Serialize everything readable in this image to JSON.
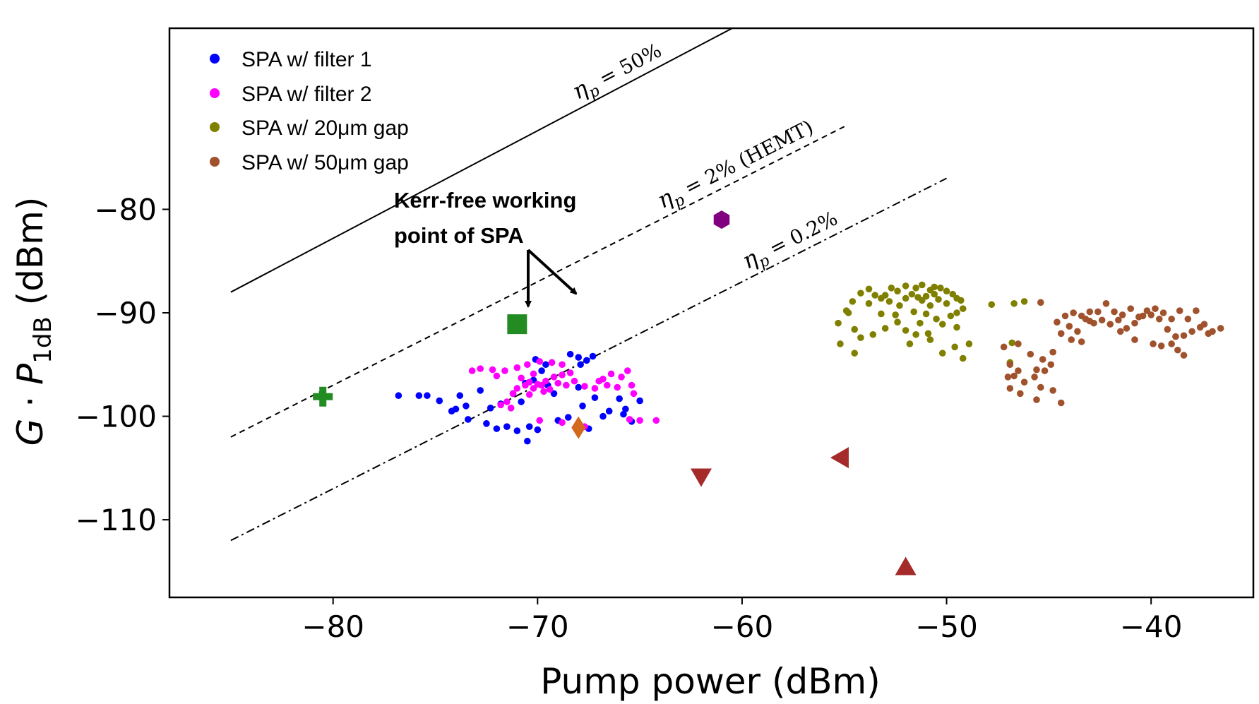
{
  "chart_data": {
    "type": "scatter",
    "xlabel": "Pump power (dBm)",
    "ylabel": "G · P_1dB (dBm)",
    "ylabel_parts": {
      "g": "G",
      "dot": " · ",
      "p": "P",
      "sub": "1dB",
      "unit": " (dBm)"
    },
    "xlim": [
      -88,
      -35
    ],
    "ylim": [
      -117.5,
      -62.5
    ],
    "xticks": [
      -80,
      -70,
      -60,
      -50,
      -40
    ],
    "xtick_labels": [
      "−80",
      "−70",
      "−60",
      "−50",
      "−40"
    ],
    "yticks": [
      -80,
      -90,
      -100,
      -110
    ],
    "ytick_labels": [
      "−80",
      "−90",
      "−100",
      "−110"
    ],
    "grid": false,
    "legend_position": "top-left",
    "series": [
      {
        "name": "SPA w/ filter 1",
        "color": "#0000ff",
        "points": [
          [
            -76.8,
            -98
          ],
          [
            -75.8,
            -98
          ],
          [
            -75.4,
            -98
          ],
          [
            -74.8,
            -98.5
          ],
          [
            -74.2,
            -99.5
          ],
          [
            -74.0,
            -99.3
          ],
          [
            -73.8,
            -98.0
          ],
          [
            -73.5,
            -99
          ],
          [
            -73.4,
            -100.3
          ],
          [
            -72.8,
            -97.5
          ],
          [
            -72.3,
            -99.2
          ],
          [
            -71.2,
            -97.8
          ],
          [
            -70.8,
            -98.6
          ],
          [
            -71.8,
            -98.8
          ],
          [
            -70.6,
            -96.8
          ],
          [
            -70.2,
            -96.5
          ],
          [
            -69.8,
            -95.6
          ],
          [
            -70.1,
            -94.5
          ],
          [
            -69.6,
            -95.0
          ],
          [
            -68.4,
            -94.0
          ],
          [
            -68.0,
            -94.3
          ],
          [
            -67.6,
            -94.6
          ],
          [
            -67.3,
            -94.2
          ],
          [
            -67.9,
            -95.0
          ],
          [
            -69.2,
            -97.8
          ],
          [
            -68.0,
            -97.2
          ],
          [
            -67.8,
            -99.0
          ],
          [
            -67.2,
            -98.2
          ],
          [
            -66.5,
            -99.5
          ],
          [
            -66.0,
            -98.3
          ],
          [
            -65.7,
            -99.3
          ],
          [
            -65.0,
            -98.5
          ],
          [
            -65.4,
            -100.5
          ],
          [
            -65.8,
            -99.8
          ],
          [
            -71.0,
            -101.4
          ],
          [
            -70.4,
            -101.0
          ],
          [
            -70.5,
            -102.4
          ],
          [
            -70.0,
            -101.3
          ],
          [
            -71.5,
            -101.0
          ],
          [
            -72.0,
            -101.2
          ],
          [
            -69.0,
            -100.4
          ],
          [
            -68.5,
            -100.1
          ],
          [
            -67.5,
            -101.2
          ],
          [
            -66.8,
            -100.0
          ],
          [
            -69.5,
            -97.0
          ],
          [
            -72.5,
            -100.7
          ]
        ]
      },
      {
        "name": "SPA w/ filter 2",
        "color": "#ff00ff",
        "points": [
          [
            -73.2,
            -95.6
          ],
          [
            -72.8,
            -95.4
          ],
          [
            -72.2,
            -95.5
          ],
          [
            -71.6,
            -95.6
          ],
          [
            -71.0,
            -95.3
          ],
          [
            -70.5,
            -95.0
          ],
          [
            -69.9,
            -94.7
          ],
          [
            -69.3,
            -94.8
          ],
          [
            -68.8,
            -95.0
          ],
          [
            -70.8,
            -96.3
          ],
          [
            -70.4,
            -96.7
          ],
          [
            -70.0,
            -96.9
          ],
          [
            -69.6,
            -96.6
          ],
          [
            -69.2,
            -96.2
          ],
          [
            -68.8,
            -96.0
          ],
          [
            -68.4,
            -95.8
          ],
          [
            -70.6,
            -97.0
          ],
          [
            -70.2,
            -97.3
          ],
          [
            -69.8,
            -97.0
          ],
          [
            -69.4,
            -97.4
          ],
          [
            -69.0,
            -96.8
          ],
          [
            -68.6,
            -97.0
          ],
          [
            -71.2,
            -97.8
          ],
          [
            -71.0,
            -97.3
          ],
          [
            -70.4,
            -97.9
          ],
          [
            -69.7,
            -97.6
          ],
          [
            -68.2,
            -96.6
          ],
          [
            -67.7,
            -97.1
          ],
          [
            -67.2,
            -97.3
          ],
          [
            -66.8,
            -96.4
          ],
          [
            -66.4,
            -95.9
          ],
          [
            -65.9,
            -96.2
          ],
          [
            -65.6,
            -95.6
          ],
          [
            -65.4,
            -97.0
          ],
          [
            -66.1,
            -97.2
          ],
          [
            -66.6,
            -97.0
          ],
          [
            -67.0,
            -96.6
          ],
          [
            -65.3,
            -97.8
          ],
          [
            -71.5,
            -98.6
          ],
          [
            -71.3,
            -99.2
          ],
          [
            -69.9,
            -100.4
          ],
          [
            -68.8,
            -100.6
          ],
          [
            -67.7,
            -101.0
          ],
          [
            -65.5,
            -100.3
          ],
          [
            -65.0,
            -100.4
          ],
          [
            -64.2,
            -100.4
          ],
          [
            -70.2,
            -95.9
          ],
          [
            -72.0,
            -96.1
          ],
          [
            -71.8,
            -98.9
          ]
        ]
      },
      {
        "name": "SPA w/ 20μm gap",
        "color": "#808000",
        "points": [
          [
            -55.3,
            -91.0
          ],
          [
            -54.9,
            -89.8
          ],
          [
            -54.6,
            -88.9
          ],
          [
            -54.5,
            -91.6
          ],
          [
            -54.2,
            -88.1
          ],
          [
            -53.8,
            -87.7
          ],
          [
            -53.5,
            -88.3
          ],
          [
            -53.2,
            -88.6
          ],
          [
            -53.0,
            -88.3
          ],
          [
            -52.7,
            -87.6
          ],
          [
            -52.4,
            -87.9
          ],
          [
            -52.0,
            -87.4
          ],
          [
            -51.7,
            -88.2
          ],
          [
            -51.5,
            -87.6
          ],
          [
            -51.2,
            -87.3
          ],
          [
            -51.0,
            -88.4
          ],
          [
            -50.8,
            -87.8
          ],
          [
            -50.6,
            -87.5
          ],
          [
            -50.3,
            -87.6
          ],
          [
            -50.0,
            -87.9
          ],
          [
            -49.7,
            -88.2
          ],
          [
            -49.5,
            -88.6
          ],
          [
            -49.3,
            -88.8
          ],
          [
            -49.2,
            -89.6
          ],
          [
            -49.5,
            -90.0
          ],
          [
            -50.0,
            -89.1
          ],
          [
            -50.4,
            -88.7
          ],
          [
            -50.8,
            -89.3
          ],
          [
            -51.2,
            -88.8
          ],
          [
            -51.6,
            -89.9
          ],
          [
            -52.0,
            -88.6
          ],
          [
            -52.3,
            -89.3
          ],
          [
            -52.8,
            -88.9
          ],
          [
            -53.2,
            -90.1
          ],
          [
            -53.8,
            -89.1
          ],
          [
            -51.0,
            -90.1
          ],
          [
            -51.3,
            -91.0
          ],
          [
            -50.2,
            -91.1
          ],
          [
            -50.5,
            -90.6
          ],
          [
            -49.8,
            -90.3
          ],
          [
            -49.5,
            -91.4
          ],
          [
            -51.5,
            -92.1
          ],
          [
            -52.0,
            -91.7
          ],
          [
            -52.4,
            -90.9
          ],
          [
            -53.0,
            -91.5
          ],
          [
            -53.6,
            -92.1
          ],
          [
            -55.2,
            -93.0
          ],
          [
            -54.5,
            -93.9
          ],
          [
            -54.2,
            -92.4
          ],
          [
            -51.8,
            -93.0
          ],
          [
            -50.8,
            -92.6
          ],
          [
            -50.2,
            -93.9
          ],
          [
            -49.2,
            -94.4
          ],
          [
            -48.9,
            -93.0
          ],
          [
            -49.6,
            -93.3
          ],
          [
            -47.8,
            -89.2
          ],
          [
            -46.7,
            -89.1
          ],
          [
            -46.2,
            -88.9
          ],
          [
            -46.9,
            -94.8
          ],
          [
            -46.8,
            -92.9
          ],
          [
            -54.8,
            -90.0
          ],
          [
            -52.5,
            -90.2
          ],
          [
            -50.6,
            -88.2
          ],
          [
            -50.9,
            -92.0
          ],
          [
            -51.4,
            -88.5
          ]
        ]
      },
      {
        "name": "SPA w/ 50μm gap",
        "color": "#a0522d",
        "points": [
          [
            -45.4,
            -89.0
          ],
          [
            -44.2,
            -90.3
          ],
          [
            -43.8,
            -90.0
          ],
          [
            -43.4,
            -90.3
          ],
          [
            -43.0,
            -89.9
          ],
          [
            -42.6,
            -89.9
          ],
          [
            -42.2,
            -89.1
          ],
          [
            -41.8,
            -89.9
          ],
          [
            -41.4,
            -90.2
          ],
          [
            -41.0,
            -89.6
          ],
          [
            -40.6,
            -90.4
          ],
          [
            -40.2,
            -89.8
          ],
          [
            -39.8,
            -89.6
          ],
          [
            -39.4,
            -90.0
          ],
          [
            -39.0,
            -90.6
          ],
          [
            -38.6,
            -89.8
          ],
          [
            -38.2,
            -90.6
          ],
          [
            -37.8,
            -89.8
          ],
          [
            -37.4,
            -91.1
          ],
          [
            -37.0,
            -91.8
          ],
          [
            -36.6,
            -91.5
          ],
          [
            -37.2,
            -92.0
          ],
          [
            -37.6,
            -91.4
          ],
          [
            -44.6,
            -90.9
          ],
          [
            -44.0,
            -91.3
          ],
          [
            -43.6,
            -91.8
          ],
          [
            -43.2,
            -90.6
          ],
          [
            -42.8,
            -91.0
          ],
          [
            -42.4,
            -90.7
          ],
          [
            -42.0,
            -91.1
          ],
          [
            -41.6,
            -90.7
          ],
          [
            -41.2,
            -91.5
          ],
          [
            -40.8,
            -91.0
          ],
          [
            -40.4,
            -90.3
          ],
          [
            -40.0,
            -90.2
          ],
          [
            -39.6,
            -90.6
          ],
          [
            -39.2,
            -91.6
          ],
          [
            -38.8,
            -92.3
          ],
          [
            -38.4,
            -92.2
          ],
          [
            -38.0,
            -91.8
          ],
          [
            -44.4,
            -92.0
          ],
          [
            -43.9,
            -92.6
          ],
          [
            -43.4,
            -92.8
          ],
          [
            -40.8,
            -92.6
          ],
          [
            -39.9,
            -93.0
          ],
          [
            -39.5,
            -93.2
          ],
          [
            -39.0,
            -93.0
          ],
          [
            -38.7,
            -93.6
          ],
          [
            -38.4,
            -94.1
          ],
          [
            -41.5,
            -91.8
          ],
          [
            -44.8,
            -93.8
          ],
          [
            -45.3,
            -94.5
          ],
          [
            -44.9,
            -95.0
          ],
          [
            -45.6,
            -95.5
          ],
          [
            -45.7,
            -96.2
          ],
          [
            -46.2,
            -96.7
          ],
          [
            -46.5,
            -95.6
          ],
          [
            -46.7,
            -96.1
          ],
          [
            -46.9,
            -97.3
          ],
          [
            -46.4,
            -97.8
          ],
          [
            -45.4,
            -97.2
          ],
          [
            -44.8,
            -97.5
          ],
          [
            -44.4,
            -98.7
          ],
          [
            -45.6,
            -98.4
          ],
          [
            -47.0,
            -96.2
          ],
          [
            -46.9,
            -95.0
          ],
          [
            -47.2,
            -93.3
          ],
          [
            -46.5,
            -93.0
          ],
          [
            -45.9,
            -94.0
          ],
          [
            -45.2,
            -95.6
          ],
          [
            -43.0,
            -90.8
          ]
        ]
      }
    ],
    "markers": [
      {
        "shape": "square",
        "color": "#228b22",
        "x": -71.0,
        "y": -91.1
      },
      {
        "shape": "plus",
        "color": "#228b22",
        "x": -80.5,
        "y": -98.1
      },
      {
        "shape": "hexagon",
        "color": "#800080",
        "x": -61.0,
        "y": -81.0
      },
      {
        "shape": "diamond",
        "color": "#d2691e",
        "x": -68.0,
        "y": -101.1
      },
      {
        "shape": "triangle-down",
        "color": "#a52a2a",
        "x": -62.0,
        "y": -105.8
      },
      {
        "shape": "triangle-left",
        "color": "#a52a2a",
        "x": -55.2,
        "y": -104.0
      },
      {
        "shape": "triangle-up",
        "color": "#a52a2a",
        "x": -52.0,
        "y": -114.6
      }
    ],
    "efficiency_lines": [
      {
        "label_sym": "η",
        "label_sub": "p",
        "label_rest": " = 50%",
        "style": "solid",
        "x": [
          -85,
          -60
        ],
        "y": [
          -88,
          -62
        ]
      },
      {
        "label_sym": "η",
        "label_sub": "p",
        "label_rest": " = 2% (HEMT)",
        "style": "dashed",
        "x": [
          -85,
          -55
        ],
        "y": [
          -102,
          -72
        ]
      },
      {
        "label_sym": "η",
        "label_sub": "p",
        "label_rest": " = 0.2%",
        "style": "dashdot",
        "x": [
          -85,
          -50
        ],
        "y": [
          -112,
          -77
        ]
      }
    ],
    "annotation": {
      "lines": [
        "Kerr-free working",
        "point of SPA"
      ]
    }
  }
}
